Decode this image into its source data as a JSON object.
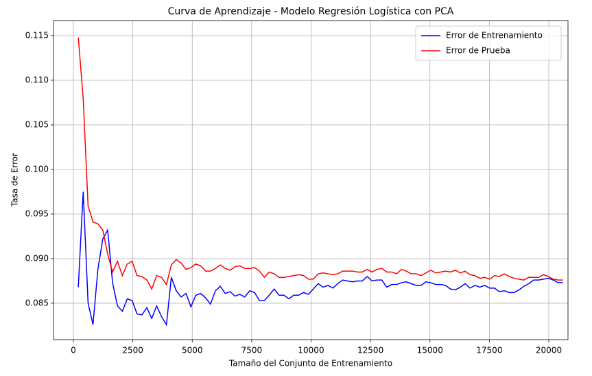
{
  "chart_data": {
    "type": "line",
    "title": "Curva de Aprendizaje - Modelo Regresión Logística con PCA",
    "x_label": "Tamaño del Conjunto de Entrenamiento",
    "y_label": "Tasa de Error",
    "x": [
      206,
      412,
      618,
      824,
      1030,
      1236,
      1442,
      1648,
      1854,
      2060,
      2266,
      2472,
      2678,
      2884,
      3090,
      3296,
      3502,
      3708,
      3914,
      4120,
      4326,
      4532,
      4738,
      4944,
      5150,
      5356,
      5562,
      5768,
      5974,
      6180,
      6386,
      6592,
      6798,
      7004,
      7210,
      7416,
      7622,
      7828,
      8034,
      8240,
      8446,
      8652,
      8858,
      9064,
      9270,
      9476,
      9682,
      9888,
      10094,
      10300,
      10506,
      10712,
      10918,
      11124,
      11330,
      11536,
      11742,
      11948,
      12154,
      12360,
      12566,
      12772,
      12978,
      13184,
      13390,
      13596,
      13802,
      14008,
      14214,
      14420,
      14626,
      14832,
      15038,
      15244,
      15450,
      15656,
      15862,
      16068,
      16274,
      16480,
      16686,
      16892,
      17098,
      17304,
      17510,
      17716,
      17922,
      18128,
      18334,
      18540,
      18746,
      18952,
      19158,
      19364,
      19570,
      19776,
      19982,
      20188,
      20394,
      20600
    ],
    "series": [
      {
        "name": "Error de Entrenamiento",
        "color": "#0000ff",
        "values": [
          0.0868,
          0.0975,
          0.085,
          0.0826,
          0.0888,
          0.0922,
          0.0932,
          0.0873,
          0.0847,
          0.0841,
          0.0855,
          0.0853,
          0.0838,
          0.0837,
          0.0845,
          0.0833,
          0.0847,
          0.0835,
          0.0826,
          0.0879,
          0.0864,
          0.0857,
          0.0861,
          0.0846,
          0.0859,
          0.0861,
          0.0856,
          0.0849,
          0.0864,
          0.0869,
          0.0861,
          0.0863,
          0.0858,
          0.086,
          0.0857,
          0.0864,
          0.0862,
          0.0853,
          0.0853,
          0.0859,
          0.0866,
          0.0859,
          0.0859,
          0.0855,
          0.0859,
          0.0859,
          0.0862,
          0.086,
          0.0866,
          0.0872,
          0.0868,
          0.087,
          0.0867,
          0.0872,
          0.0876,
          0.0875,
          0.0874,
          0.0875,
          0.0875,
          0.088,
          0.0875,
          0.0876,
          0.0876,
          0.0868,
          0.0871,
          0.0871,
          0.0873,
          0.0874,
          0.0872,
          0.087,
          0.087,
          0.0874,
          0.0873,
          0.0871,
          0.0871,
          0.087,
          0.0866,
          0.0865,
          0.0868,
          0.0872,
          0.0867,
          0.087,
          0.0868,
          0.087,
          0.0867,
          0.0867,
          0.0863,
          0.0864,
          0.0862,
          0.0862,
          0.0865,
          0.0869,
          0.0872,
          0.0876,
          0.0876,
          0.0877,
          0.0878,
          0.0876,
          0.0873,
          0.0873
        ]
      },
      {
        "name": "Error de Prueba",
        "color": "#ff0000",
        "values": [
          0.1148,
          0.108,
          0.0959,
          0.0941,
          0.0939,
          0.0932,
          0.0905,
          0.0885,
          0.0897,
          0.0881,
          0.0894,
          0.0897,
          0.0881,
          0.088,
          0.0876,
          0.0866,
          0.0881,
          0.0879,
          0.0871,
          0.0893,
          0.0899,
          0.0895,
          0.0888,
          0.089,
          0.0894,
          0.0892,
          0.0886,
          0.0886,
          0.0889,
          0.0893,
          0.0889,
          0.0887,
          0.0891,
          0.0892,
          0.0889,
          0.0889,
          0.089,
          0.0886,
          0.0879,
          0.0885,
          0.0883,
          0.0879,
          0.0879,
          0.088,
          0.0881,
          0.0882,
          0.0881,
          0.0877,
          0.0877,
          0.0883,
          0.0884,
          0.0883,
          0.0882,
          0.0883,
          0.0886,
          0.0886,
          0.0886,
          0.0885,
          0.0885,
          0.0888,
          0.0885,
          0.0888,
          0.0889,
          0.0885,
          0.0885,
          0.0883,
          0.0888,
          0.0886,
          0.0883,
          0.0883,
          0.0881,
          0.0884,
          0.0887,
          0.0884,
          0.0885,
          0.0886,
          0.0885,
          0.0887,
          0.0884,
          0.0886,
          0.0882,
          0.0881,
          0.0878,
          0.0879,
          0.0877,
          0.0881,
          0.088,
          0.0883,
          0.088,
          0.0878,
          0.0877,
          0.0876,
          0.0879,
          0.0879,
          0.0879,
          0.0882,
          0.088,
          0.0877,
          0.0876,
          0.0876
        ]
      }
    ],
    "xlim": [
      -837,
      20808
    ],
    "ylim": [
      0.08092,
      0.11669
    ],
    "xticks": [
      0,
      2500,
      5000,
      7500,
      10000,
      12500,
      15000,
      17500,
      20000
    ],
    "yticks": [
      0.085,
      {
        "value": 0.09,
        "label": "0.090"
      },
      0.095,
      {
        "value": 0.1,
        "label": "0.100"
      },
      0.105,
      {
        "value": 0.11,
        "label": "0.110"
      },
      0.115
    ],
    "grid": true,
    "legend": "upper-right"
  }
}
